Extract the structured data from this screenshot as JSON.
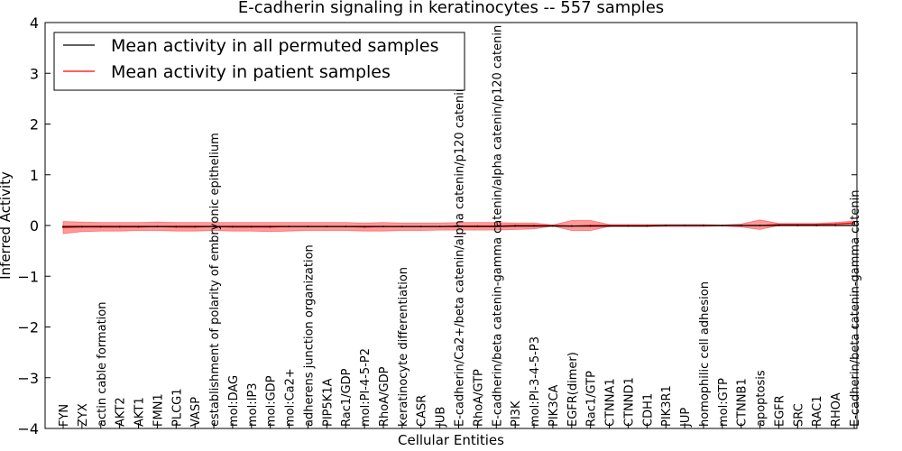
{
  "chart_data": {
    "type": "line",
    "title": "E-cadherin signaling in keratinocytes -- 557 samples",
    "xlabel": "Cellular Entities",
    "ylabel": "Inferred Activity",
    "ylim": [
      -4,
      4
    ],
    "yticks": [
      4,
      3,
      2,
      1,
      0,
      -1,
      -2,
      -3,
      -4
    ],
    "ytick_labels": [
      "4",
      "3",
      "2",
      "1",
      "0",
      "−1",
      "−2",
      "−3",
      "−4"
    ],
    "grid": false,
    "legend_position": "top-left",
    "categories": [
      "FYN",
      "ZYX",
      "actin cable formation",
      "AKT2",
      "AKT1",
      "FMN1",
      "PLCG1",
      "VASP",
      "establishment of polarity of embryonic epithelium",
      "mol:DAG",
      "mol:IP3",
      "mol:GDP",
      "mol:Ca2+",
      "adherens junction organization",
      "PIP5K1A",
      "Rac1/GDP",
      "mol:PI-4-5-P2",
      "RhoA/GDP",
      "keratinocyte differentiation",
      "CASR",
      "JUB",
      "E-cadherin/Ca2+/beta catenin/alpha catenin/p120 catenin",
      "RhoA/GTP",
      "E-cadherin/beta catenin-gamma catenin/alpha catenin/p120 catenin",
      "PI3K",
      "mol:PI-3-4-5-P3",
      "PIK3CA",
      "EGFR(dimer)",
      "Rac1/GTP",
      "CTNNA1",
      "CTNND1",
      "CDH1",
      "PIK3R1",
      "JUP",
      "homophilic cell adhesion",
      "mol:GTP",
      "CTNNB1",
      "apoptosis",
      "EGFR",
      "SRC",
      "RAC1",
      "RHOA",
      "E-cadherin/beta catenin-gamma catenin"
    ],
    "series": [
      {
        "name": "Mean activity in all permuted samples",
        "color": "#000000",
        "values": [
          -0.02,
          -0.02,
          -0.02,
          -0.02,
          -0.02,
          -0.02,
          -0.02,
          -0.02,
          -0.02,
          -0.02,
          -0.02,
          -0.02,
          -0.02,
          -0.02,
          -0.02,
          -0.02,
          -0.02,
          -0.02,
          -0.02,
          -0.02,
          -0.02,
          -0.02,
          -0.02,
          -0.02,
          -0.01,
          -0.01,
          -0.01,
          -0.01,
          -0.01,
          -0.01,
          -0.01,
          -0.01,
          0,
          0,
          0,
          0,
          0,
          0,
          0,
          0,
          0,
          0,
          0
        ]
      },
      {
        "name": "Mean activity in patient samples",
        "color": "#ff0000",
        "values": [
          -0.04,
          -0.03,
          -0.03,
          -0.03,
          -0.03,
          -0.02,
          -0.03,
          -0.03,
          -0.02,
          -0.03,
          -0.03,
          -0.03,
          -0.02,
          -0.02,
          -0.02,
          -0.02,
          -0.03,
          -0.02,
          -0.02,
          -0.02,
          -0.02,
          -0.01,
          -0.01,
          -0.01,
          0,
          0,
          0,
          -0.01,
          0,
          0,
          0,
          0,
          0,
          0,
          0,
          0,
          0,
          0,
          0.02,
          0.02,
          0.02,
          0.03,
          0.05
        ],
        "band_upper": [
          0.08,
          0.07,
          0.06,
          0.06,
          0.06,
          0.07,
          0.06,
          0.06,
          0.06,
          0.06,
          0.06,
          0.06,
          0.06,
          0.06,
          0.06,
          0.06,
          0.05,
          0.06,
          0.05,
          0.05,
          0.05,
          0.06,
          0.06,
          0.06,
          0.05,
          0.05,
          0.01,
          0.1,
          0.1,
          0.02,
          0.02,
          0.02,
          0.02,
          0.02,
          0.02,
          0.01,
          0.03,
          0.11,
          0.04,
          0.04,
          0.04,
          0.06,
          0.09
        ],
        "band_lower": [
          -0.16,
          -0.12,
          -0.11,
          -0.11,
          -0.1,
          -0.1,
          -0.11,
          -0.11,
          -0.1,
          -0.11,
          -0.11,
          -0.12,
          -0.11,
          -0.1,
          -0.1,
          -0.1,
          -0.11,
          -0.11,
          -0.1,
          -0.1,
          -0.09,
          -0.09,
          -0.09,
          -0.09,
          -0.08,
          -0.07,
          -0.01,
          -0.1,
          -0.1,
          -0.02,
          -0.02,
          -0.02,
          -0.02,
          -0.02,
          -0.02,
          -0.01,
          -0.03,
          -0.08,
          0,
          0,
          0,
          0.01,
          0.02
        ]
      }
    ]
  }
}
